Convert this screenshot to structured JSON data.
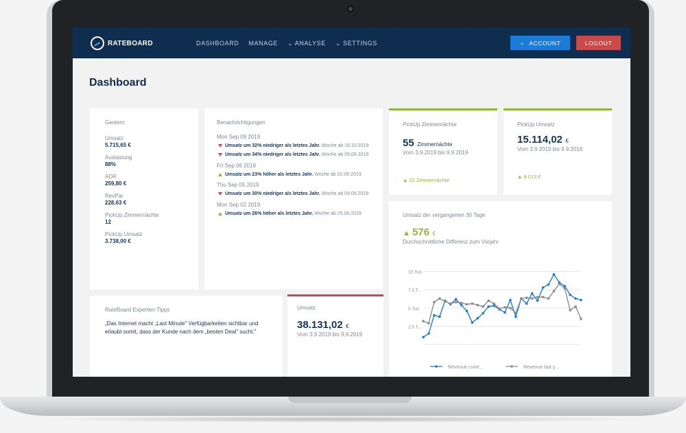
{
  "brand": {
    "name": "RATEBOARD"
  },
  "nav": {
    "items": [
      "DASHBOARD",
      "MANAGE",
      "ANALYSE",
      "SETTINGS"
    ]
  },
  "header": {
    "account_label": "ACCOUNT",
    "logout_label": "LOGOUT"
  },
  "page": {
    "title": "Dashboard"
  },
  "yesterday": {
    "title": "Gestern",
    "stats": [
      {
        "label": "Umsatz",
        "value": "5.715,65 €"
      },
      {
        "label": "Auslastung",
        "value": "88%"
      },
      {
        "label": "ADR",
        "value": "259,80 €"
      },
      {
        "label": "RevPar",
        "value": "228,63 €"
      },
      {
        "label": "PickUp Zimmernächte",
        "value": "12"
      },
      {
        "label": "PickUp Umsatz",
        "value": "3.738,00 €"
      }
    ]
  },
  "notifications": {
    "title": "Benachrichtigungen",
    "groups": [
      {
        "date": "Mon Sep 09 2019",
        "items": [
          {
            "dir": "down",
            "text": "Umsatz um 32% niedriger als letztes Jahr.",
            "sub": "Woche ab 16.10.2019"
          },
          {
            "dir": "down",
            "text": "Umsatz um 34% niedriger als letztes Jahr.",
            "sub": "Woche ab 09.09.2019"
          }
        ]
      },
      {
        "date": "Fri Sep 06 2019",
        "items": [
          {
            "dir": "up",
            "text": "Umsatz um 23% höher als letztes Jahr.",
            "sub": "Woche ab 02.09.2019"
          }
        ]
      },
      {
        "date": "Thu Sep 05 2019",
        "items": [
          {
            "dir": "down",
            "text": "Umsatz um 30% niedriger als letztes Jahr.",
            "sub": "Woche ab 09.09.2019"
          }
        ]
      },
      {
        "date": "Mon Sep 02 2019",
        "items": [
          {
            "dir": "up",
            "text": "Umsatz um 26% höher als letztes Jahr.",
            "sub": "Woche ab 26.08.2019"
          }
        ]
      }
    ]
  },
  "pickup_nights": {
    "title": "PickUp Zimmernächte",
    "value": "55",
    "unit": "Zimmernächte",
    "period": "Vom 3.9.2019 bis 9.9.2019",
    "delta": "22 Zimmernächte",
    "accent": "#8db63a"
  },
  "pickup_revenue": {
    "title": "PickUp Umsatz",
    "value": "15.114,02",
    "unit": "€",
    "period": "Vom 3.9.2019 bis 9.9.2019",
    "delta": "8.013 €",
    "accent": "#8db63a"
  },
  "tips": {
    "title": "RateBoard Experten-Tipps",
    "text": "„Das Internet macht „Last Minute\" Verfügbarkeiten sichtbar und erlaubt somit, dass der Kunde nach dem „besten Deal\" sucht.\""
  },
  "revenue": {
    "title": "Umsatz",
    "value": "38.131,02",
    "unit": "€",
    "period": "Vom 3.9.2019 bis 9.9.2019",
    "accent": "#c94a4a"
  },
  "revenue30": {
    "title": "Umsatz der vergangenen 30 Tage",
    "value": "576",
    "unit": "€",
    "caption": "Durchschnittliche Differenz zum Vorjahr"
  },
  "chart_data": {
    "type": "line",
    "yticks": [
      "10 Tsd.",
      "7.5 T...",
      "5 Tsd.",
      "2.5 T..."
    ],
    "ytick_values": [
      10000,
      7500,
      5000,
      2500
    ],
    "ylim": [
      0,
      11000
    ],
    "x": [
      1,
      2,
      3,
      4,
      5,
      6,
      7,
      8,
      9,
      10,
      11,
      12,
      13,
      14,
      15,
      16,
      17,
      18,
      19,
      20,
      21,
      22,
      23,
      24,
      25,
      26,
      27,
      28,
      29,
      30
    ],
    "series": [
      {
        "name": "Revenue curre...",
        "color": "#1c7bd6",
        "values": [
          1000,
          1500,
          4000,
          3800,
          6000,
          5500,
          6200,
          5400,
          4600,
          3000,
          3600,
          4300,
          5200,
          5300,
          4800,
          4400,
          6100,
          3800,
          6300,
          5600,
          7000,
          6000,
          7800,
          8200,
          9600,
          8500,
          8000,
          6800,
          6300,
          6100
        ]
      },
      {
        "name": "Revenue last y...",
        "color": "#8a8a8a",
        "values": [
          3200,
          2900,
          5800,
          6300,
          5900,
          5600,
          5800,
          5700,
          5500,
          5600,
          5400,
          5200,
          6000,
          5600,
          4900,
          5100,
          5000,
          4300,
          6300,
          6400,
          6300,
          6500,
          6500,
          6300,
          7300,
          8300,
          7700,
          4700,
          5200,
          3500
        ]
      }
    ]
  }
}
